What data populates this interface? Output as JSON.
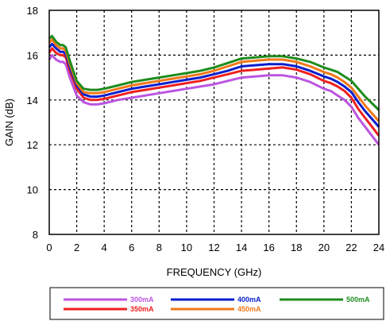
{
  "chart_data": {
    "type": "line",
    "xlabel": "FREQUENCY (GHz)",
    "ylabel": "GAIN (dB)",
    "xlim": [
      0,
      24
    ],
    "ylim": [
      8,
      18
    ],
    "xticks": [
      "0",
      "2",
      "4",
      "6",
      "8",
      "10",
      "12",
      "14",
      "16",
      "18",
      "20",
      "22",
      "24"
    ],
    "yticks": [
      "8",
      "10",
      "12",
      "14",
      "16",
      "18"
    ],
    "grid": true,
    "legend_position": "bottom",
    "x": [
      0,
      0.2,
      0.5,
      0.8,
      1,
      1.2,
      1.5,
      2,
      2.5,
      3,
      3.5,
      4,
      5,
      6,
      7,
      8,
      9,
      10,
      11,
      12,
      13,
      14,
      15,
      16,
      17,
      18,
      19,
      20,
      20.5,
      21,
      21.5,
      22,
      22.5,
      23,
      23.5,
      24
    ],
    "series": [
      {
        "name": "300mA",
        "color": "#bb55e0",
        "values": [
          15.8,
          16.0,
          15.8,
          15.7,
          15.7,
          15.6,
          15.0,
          14.2,
          13.9,
          13.8,
          13.8,
          13.85,
          14.0,
          14.1,
          14.2,
          14.3,
          14.4,
          14.5,
          14.6,
          14.7,
          14.85,
          15.0,
          15.05,
          15.1,
          15.1,
          15.0,
          14.8,
          14.5,
          14.4,
          14.2,
          14.0,
          13.7,
          13.2,
          12.8,
          12.4,
          12.0
        ]
      },
      {
        "name": "350mA",
        "color": "#ee2020",
        "values": [
          16.1,
          16.3,
          16.1,
          16.0,
          16.0,
          15.9,
          15.3,
          14.5,
          14.1,
          14.0,
          14.0,
          14.05,
          14.2,
          14.35,
          14.45,
          14.55,
          14.65,
          14.75,
          14.85,
          15.0,
          15.15,
          15.3,
          15.35,
          15.4,
          15.45,
          15.35,
          15.15,
          14.85,
          14.75,
          14.6,
          14.4,
          14.1,
          13.6,
          13.2,
          12.8,
          12.4
        ]
      },
      {
        "name": "400mA",
        "color": "#0a1ecc",
        "values": [
          16.35,
          16.5,
          16.3,
          16.15,
          16.15,
          16.05,
          15.45,
          14.65,
          14.25,
          14.15,
          14.15,
          14.2,
          14.35,
          14.5,
          14.6,
          14.7,
          14.8,
          14.9,
          15.0,
          15.15,
          15.3,
          15.5,
          15.55,
          15.6,
          15.6,
          15.5,
          15.3,
          15.05,
          14.95,
          14.8,
          14.6,
          14.35,
          13.9,
          13.5,
          13.15,
          12.8
        ]
      },
      {
        "name": "450mA",
        "color": "#f07818",
        "values": [
          16.55,
          16.7,
          16.45,
          16.3,
          16.3,
          16.2,
          15.6,
          14.75,
          14.35,
          14.3,
          14.3,
          14.35,
          14.5,
          14.65,
          14.75,
          14.85,
          14.95,
          15.05,
          15.15,
          15.3,
          15.5,
          15.7,
          15.75,
          15.8,
          15.8,
          15.7,
          15.5,
          15.25,
          15.15,
          15.0,
          14.8,
          14.55,
          14.15,
          13.75,
          13.4,
          13.05
        ]
      },
      {
        "name": "500mA",
        "color": "#1e8c1e",
        "values": [
          16.75,
          16.85,
          16.6,
          16.45,
          16.45,
          16.35,
          15.75,
          14.85,
          14.5,
          14.45,
          14.45,
          14.5,
          14.65,
          14.8,
          14.9,
          15.0,
          15.1,
          15.2,
          15.3,
          15.45,
          15.65,
          15.85,
          15.9,
          15.95,
          15.95,
          15.85,
          15.7,
          15.45,
          15.35,
          15.25,
          15.05,
          14.85,
          14.5,
          14.15,
          13.85,
          13.55
        ]
      }
    ]
  }
}
